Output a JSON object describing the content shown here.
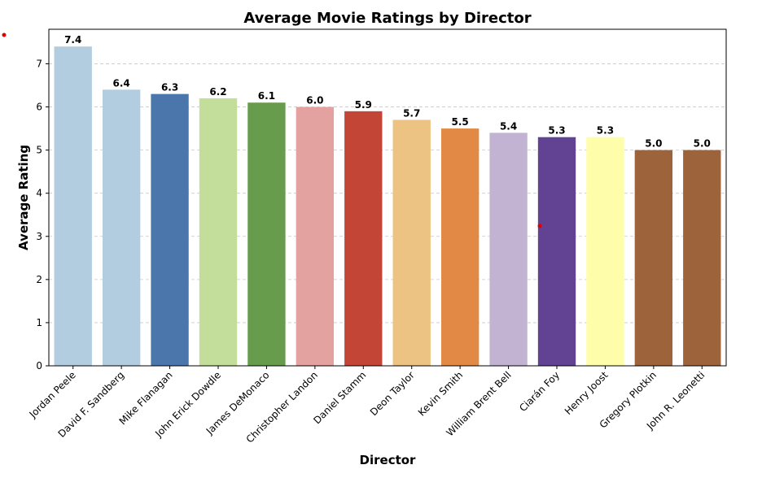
{
  "chart_data": {
    "type": "bar",
    "title": "Average Movie Ratings by Director",
    "xlabel": "Director",
    "ylabel": "Average Rating",
    "categories": [
      "Jordan Peele",
      "David F. Sandberg",
      "Mike Flanagan",
      "John Erick Dowdle",
      "James DeMonaco",
      "Christopher Landon",
      "Daniel Stamm",
      "Deon Taylor",
      "Kevin Smith",
      "William Brent Bell",
      "Ciarán Foy",
      "Henry Joost",
      "Gregory Plotkin",
      "John R. Leonetti"
    ],
    "values": [
      7.4,
      6.4,
      6.3,
      6.2,
      6.1,
      6.0,
      5.9,
      5.7,
      5.5,
      5.4,
      5.3,
      5.3,
      5.0,
      5.0
    ],
    "value_labels": [
      "7.4",
      "6.4",
      "6.3",
      "6.2",
      "6.1",
      "6.0",
      "5.9",
      "5.7",
      "5.5",
      "5.4",
      "5.3",
      "5.3",
      "5.0",
      "5.0"
    ],
    "bar_colors": [
      "#b3cde0",
      "#b3cde0",
      "#4a76ab",
      "#c3dd9a",
      "#679c4c",
      "#e3a19f",
      "#c24536",
      "#ecc382",
      "#e28a45",
      "#c3b3d2",
      "#624292",
      "#fdfdaa",
      "#9d643b",
      "#9d643b"
    ],
    "ylim": [
      0,
      7.8
    ],
    "yticks": [
      0,
      1,
      2,
      3,
      4,
      5,
      6,
      7
    ],
    "grid": true
  }
}
